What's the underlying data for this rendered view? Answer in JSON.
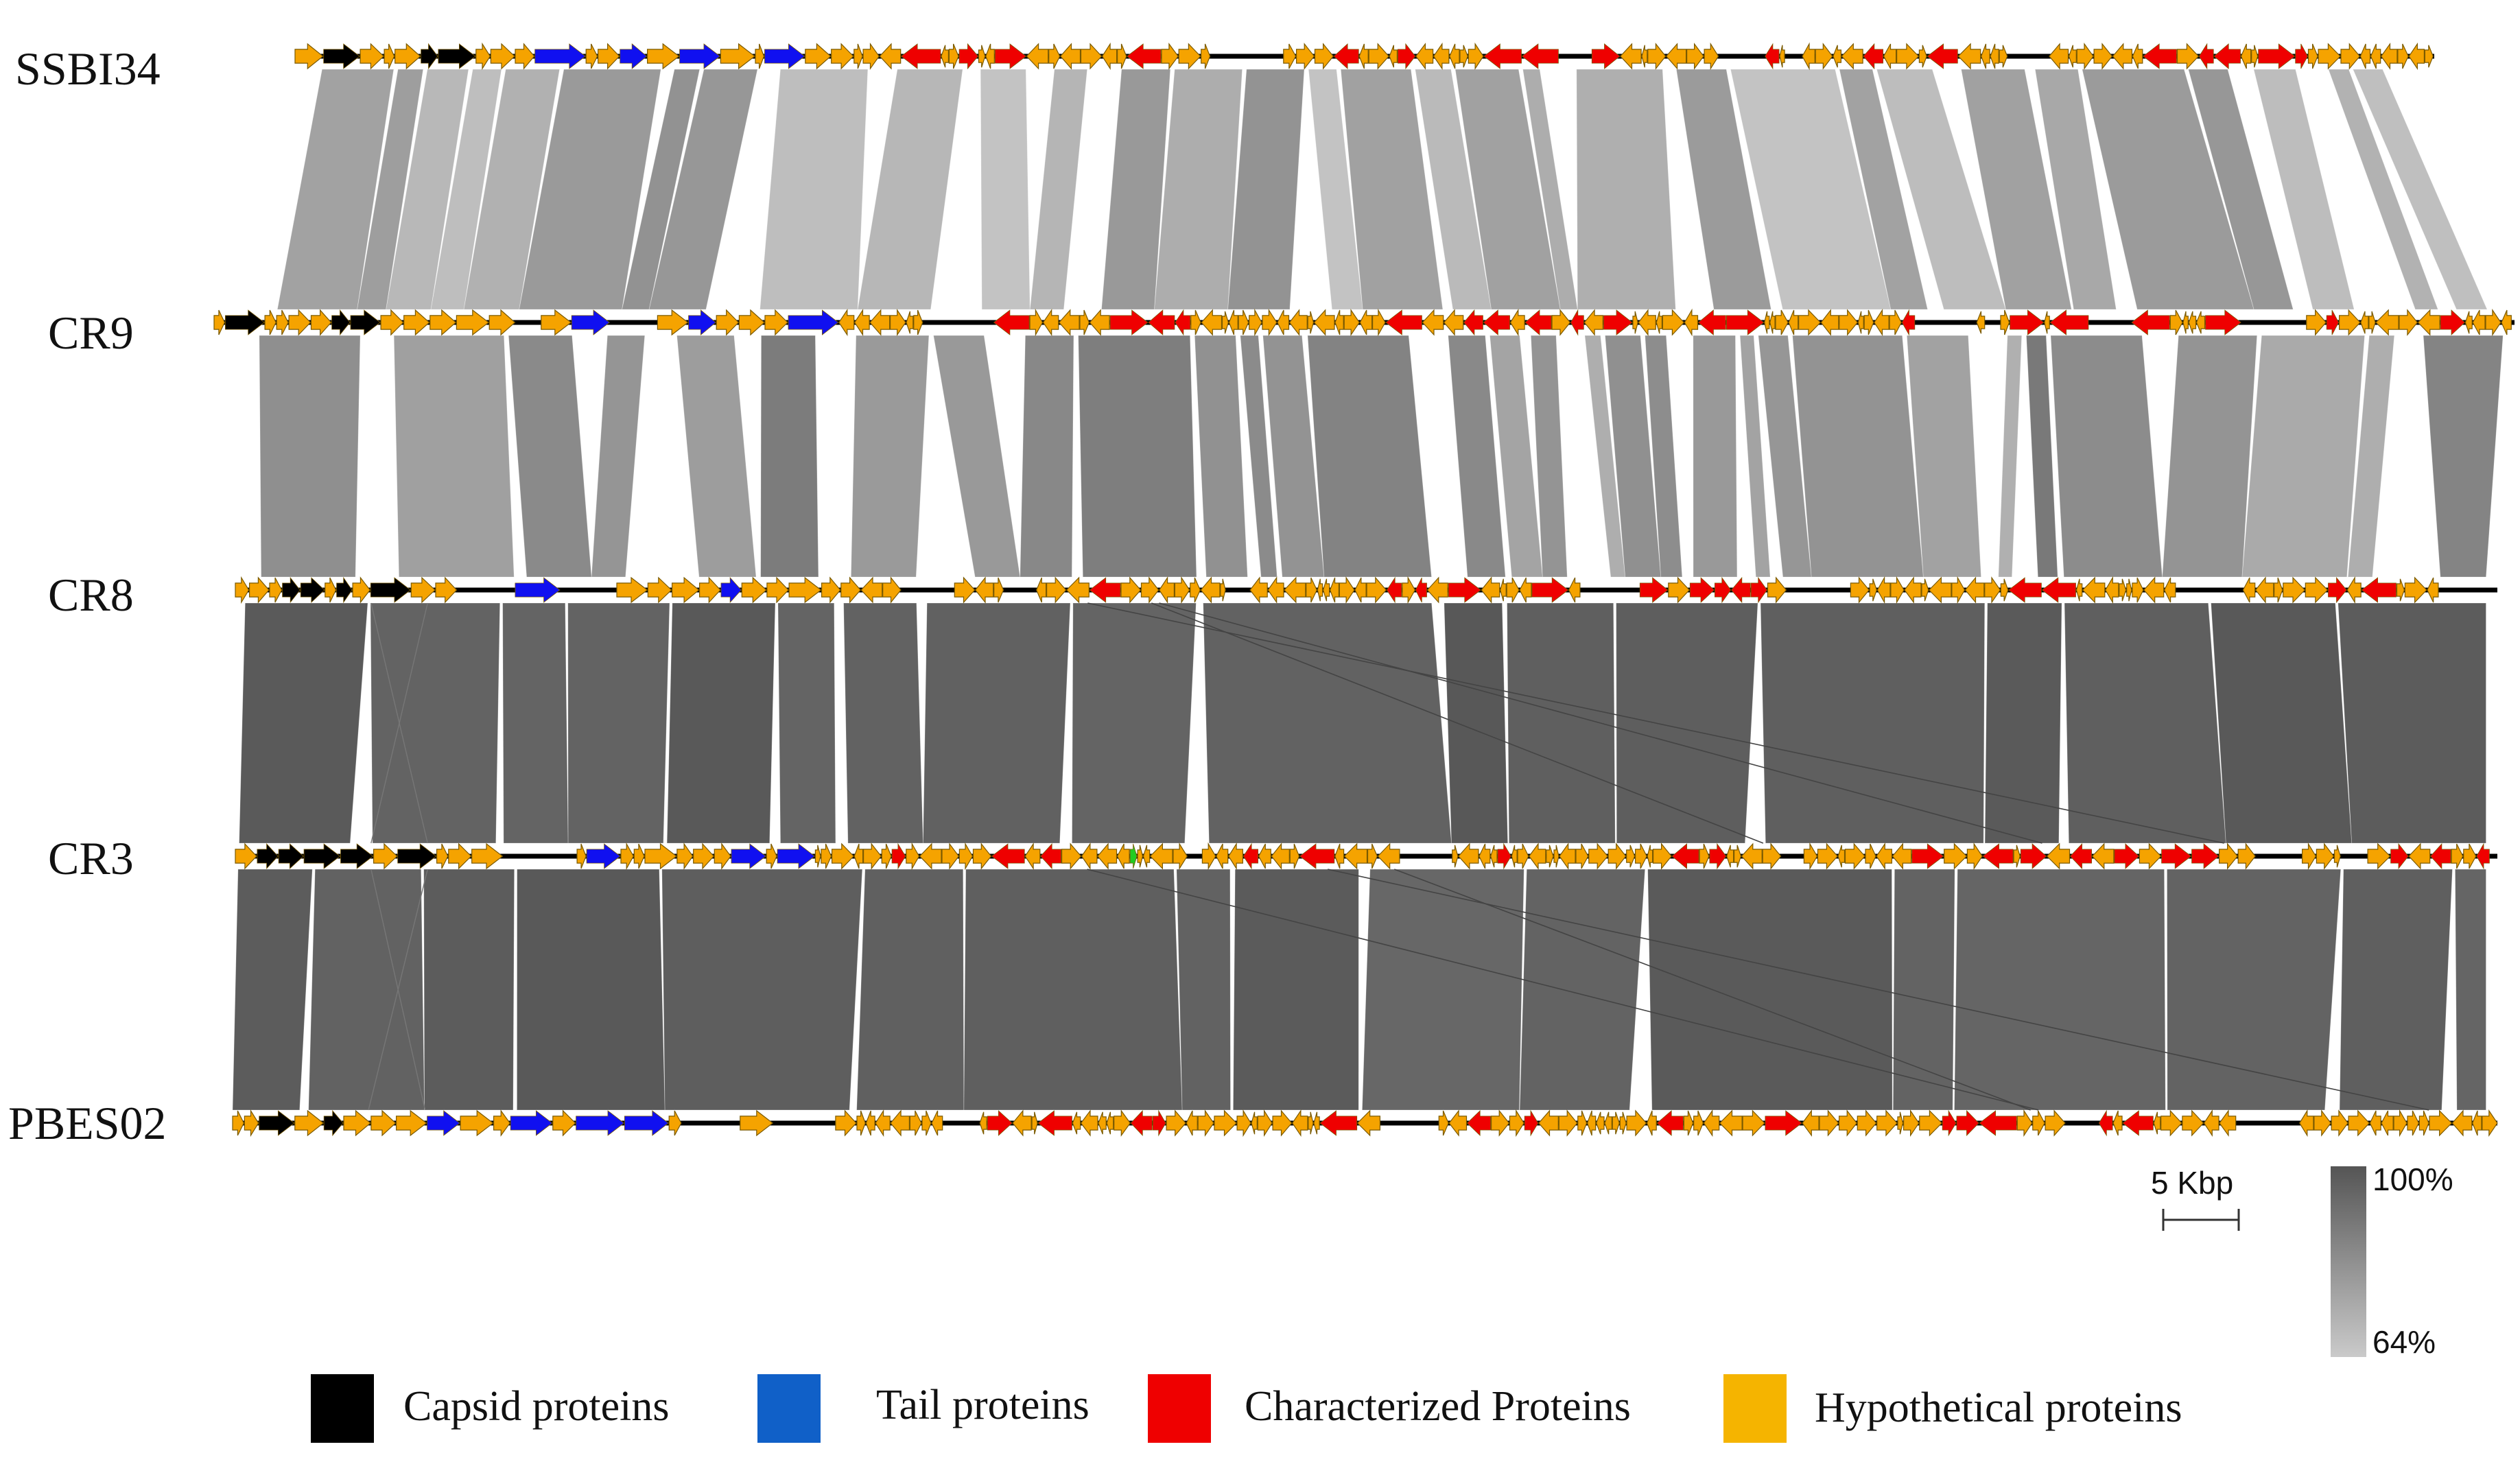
{
  "figure": {
    "type": "genome synteny comparison",
    "genomes": [
      "SSBI34",
      "CR9",
      "CR8",
      "CR3",
      "PBES02"
    ]
  },
  "colors": {
    "capsid": "#000000",
    "tail": "#1010f0",
    "characterized": "#ef0000",
    "hypothetical": "#f5a300",
    "other": "#22cc22",
    "backbone": "#000000",
    "identity_high": "#5a5a5a",
    "identity_low": "#c4c4c4"
  },
  "scale_bar": {
    "label": "5 Kbp"
  },
  "identity_scale": {
    "max_label": "100%",
    "min_label": "64%",
    "max_value": 100,
    "min_value": 64
  },
  "legend": [
    {
      "key": "capsid",
      "label": "Capsid proteins"
    },
    {
      "key": "tail",
      "label": "Tail proteins"
    },
    {
      "key": "characterized",
      "label": "Characterized Proteins"
    },
    {
      "key": "hypothetical",
      "label": "Hypothetical proteins"
    }
  ],
  "comparisons": [
    {
      "from": "SSBI34",
      "to": "CR9",
      "identity_range": [
        66,
        82
      ]
    },
    {
      "from": "CR9",
      "to": "CR8",
      "identity_range": [
        72,
        90
      ]
    },
    {
      "from": "CR8",
      "to": "CR3",
      "identity_range": [
        96,
        100
      ]
    },
    {
      "from": "CR3",
      "to": "PBES02",
      "identity_range": [
        95,
        100
      ]
    }
  ]
}
